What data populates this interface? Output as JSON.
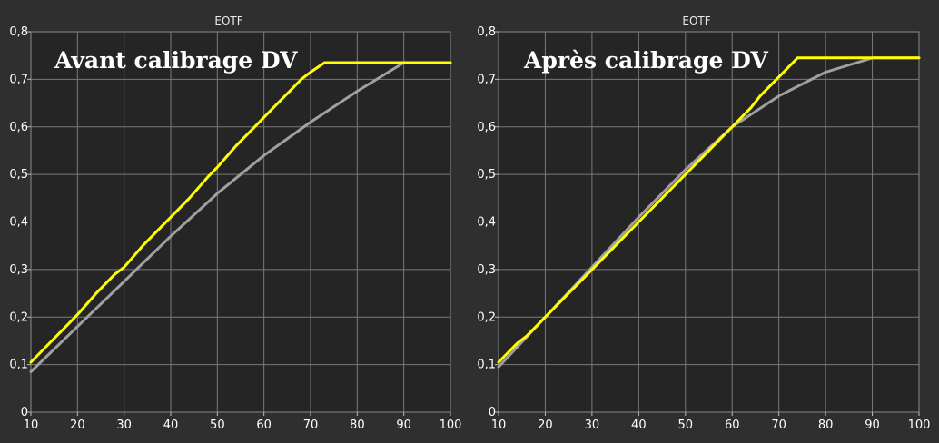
{
  "chart_data": [
    {
      "type": "line",
      "title": "EOTF",
      "overlay_label": "Avant calibrage DV",
      "x_ticks": [
        "10",
        "20",
        "30",
        "40",
        "50",
        "60",
        "70",
        "80",
        "90",
        "100"
      ],
      "y_ticks": [
        "0",
        "0,1",
        "0,2",
        "0,3",
        "0,4",
        "0,5",
        "0,6",
        "0,7",
        "0,8"
      ],
      "xlim": [
        10,
        100
      ],
      "ylim": [
        0,
        0.8
      ],
      "grid": true,
      "series": [
        {
          "color": "#a0a0a0",
          "x": [
            10,
            20,
            30,
            40,
            50,
            60,
            70,
            80,
            90,
            100
          ],
          "y": [
            0.085,
            0.18,
            0.275,
            0.37,
            0.46,
            0.54,
            0.61,
            0.675,
            0.735,
            0.735
          ]
        },
        {
          "color": "#ffff00",
          "x": [
            10,
            12,
            14,
            16,
            18,
            20,
            24,
            28,
            30,
            34,
            38,
            40,
            44,
            48,
            50,
            54,
            58,
            62,
            64,
            66,
            68,
            70,
            73,
            100
          ],
          "y": [
            0.105,
            0.125,
            0.145,
            0.165,
            0.185,
            0.205,
            0.25,
            0.29,
            0.305,
            0.35,
            0.39,
            0.41,
            0.45,
            0.495,
            0.515,
            0.56,
            0.6,
            0.64,
            0.66,
            0.68,
            0.7,
            0.715,
            0.735,
            0.735
          ]
        }
      ]
    },
    {
      "type": "line",
      "title": "EOTF",
      "overlay_label": "Après calibrage DV",
      "x_ticks": [
        "10",
        "20",
        "30",
        "40",
        "50",
        "60",
        "70",
        "80",
        "90",
        "100"
      ],
      "y_ticks": [
        "0",
        "0,1",
        "0,2",
        "0,3",
        "0,4",
        "0,5",
        "0,6",
        "0,7",
        "0,8"
      ],
      "xlim": [
        10,
        100
      ],
      "ylim": [
        0,
        0.8
      ],
      "grid": true,
      "series": [
        {
          "color": "#a0a0a0",
          "x": [
            10,
            20,
            30,
            40,
            50,
            60,
            70,
            80,
            90,
            100
          ],
          "y": [
            0.095,
            0.2,
            0.305,
            0.41,
            0.51,
            0.6,
            0.665,
            0.715,
            0.745,
            0.745
          ]
        },
        {
          "color": "#ffff00",
          "x": [
            10,
            12,
            14,
            16,
            20,
            24,
            28,
            30,
            34,
            38,
            40,
            44,
            48,
            50,
            54,
            58,
            60,
            62,
            64,
            66,
            68,
            70,
            74,
            100
          ],
          "y": [
            0.105,
            0.125,
            0.145,
            0.16,
            0.2,
            0.24,
            0.28,
            0.3,
            0.34,
            0.38,
            0.4,
            0.44,
            0.48,
            0.5,
            0.54,
            0.58,
            0.6,
            0.62,
            0.64,
            0.665,
            0.685,
            0.705,
            0.745,
            0.745
          ]
        }
      ]
    }
  ]
}
